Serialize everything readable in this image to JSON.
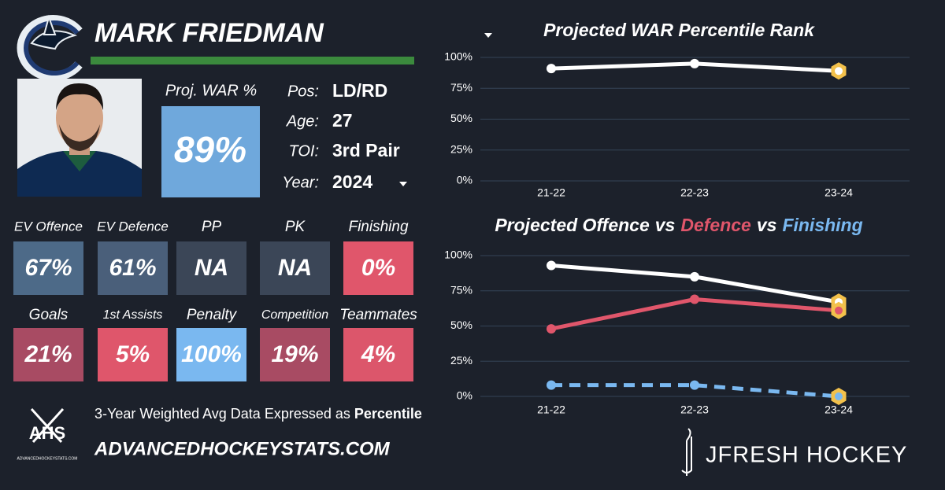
{
  "player": {
    "name": "MARK FRIEDMAN",
    "war_label": "Proj. WAR %",
    "war_value": "89%",
    "war_color": "#6fa8dc",
    "info": [
      {
        "label": "Pos:",
        "value": "LD/RD"
      },
      {
        "label": "Age:",
        "value": "27"
      },
      {
        "label": "TOI:",
        "value": "3rd Pair"
      },
      {
        "label": "Year:",
        "value": "2024"
      }
    ]
  },
  "tiles": [
    {
      "label": "EV Offence",
      "value": "67%",
      "color": "#4d6a88"
    },
    {
      "label": "EV Defence",
      "value": "61%",
      "color": "#4a5f7a"
    },
    {
      "label": "PP",
      "value": "NA",
      "color": "#3b4657"
    },
    {
      "label": "PK",
      "value": "NA",
      "color": "#3b4657"
    },
    {
      "label": "Finishing",
      "value": "0%",
      "color": "#e0566b"
    },
    {
      "label": "Goals",
      "value": "21%",
      "color": "#a84b63"
    },
    {
      "label": "1st Assists",
      "value": "5%",
      "color": "#df566b"
    },
    {
      "label": "Penalty",
      "value": "100%",
      "color": "#7ab8f0"
    },
    {
      "label": "Competition",
      "value": "19%",
      "color": "#a84b63"
    },
    {
      "label": "Teammates",
      "value": "4%",
      "color": "#dc566b"
    }
  ],
  "footer": {
    "logo": "AHS",
    "logo_sub": "ADVANCEDHOCKEYSTATS.COM",
    "note": "3-Year Weighted Avg Data Expressed as",
    "note_bold": "Percentile",
    "site": "ADVANCEDHOCKEYSTATS.COM",
    "brand": "JFRESH HOCKEY"
  },
  "chart_data": [
    {
      "type": "line",
      "title": [
        "Projected WAR Percentile Rank"
      ],
      "title_colors": [
        "#ffffff"
      ],
      "categories": [
        "21-22",
        "22-23",
        "23-24"
      ],
      "series": [
        {
          "color": "#ffffff",
          "values": [
            91,
            95,
            89
          ]
        }
      ],
      "ylim": [
        0,
        100
      ],
      "yticks": [
        {
          "value": 0,
          "label": "0%"
        },
        {
          "value": 25,
          "label": "25%"
        },
        {
          "value": 50,
          "label": "50%"
        },
        {
          "value": 75,
          "label": "75%"
        },
        {
          "value": 100,
          "label": "100%"
        }
      ],
      "grid": true
    },
    {
      "type": "line",
      "title": [
        "Projected Offence",
        "vs",
        "Defence",
        "vs",
        "Finishing"
      ],
      "title_colors": [
        "#ffffff",
        "#ffffff",
        "#e0566b",
        "#ffffff",
        "#7ab8f0"
      ],
      "categories": [
        "21-22",
        "22-23",
        "23-24"
      ],
      "series": [
        {
          "color": "#ffffff",
          "values": [
            93,
            85,
            67
          ]
        },
        {
          "color": "#e0566b",
          "values": [
            48,
            69,
            61
          ]
        },
        {
          "color": "#7ab8f0",
          "values": [
            8,
            8,
            0
          ],
          "dashed": true
        }
      ],
      "ylim": [
        0,
        100
      ],
      "yticks": [
        {
          "value": 0,
          "label": "0%"
        },
        {
          "value": 25,
          "label": "25%"
        },
        {
          "value": 50,
          "label": "50%"
        },
        {
          "value": 75,
          "label": "75%"
        },
        {
          "value": 100,
          "label": "100%"
        }
      ],
      "grid": true
    }
  ]
}
